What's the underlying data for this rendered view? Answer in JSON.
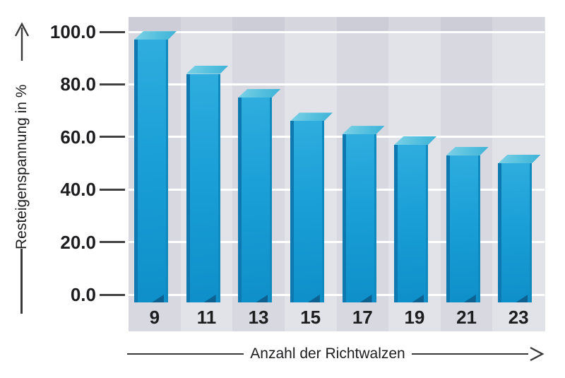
{
  "chart_data": {
    "type": "bar",
    "title": "",
    "categories": [
      "9",
      "11",
      "13",
      "15",
      "17",
      "19",
      "21",
      "23"
    ],
    "values": [
      97,
      84,
      75,
      66,
      61,
      57,
      53,
      50
    ],
    "xlabel": "Anzahl der Richtwalzen",
    "ylabel": "Resteigenspannung in %",
    "yticks_labels": [
      "100.0",
      "80.0",
      "60.0",
      "40.0",
      "20.0",
      "0.0"
    ],
    "yticks_values": [
      100,
      80,
      60,
      40,
      20,
      0
    ],
    "ylim": [
      0,
      100
    ],
    "grid": "horizontal white lines at every 20",
    "legend_position": "none",
    "background_stripes": "vertical alternating gray bands, one per category",
    "bar_style": "pseudo-3D extruded, cyan-blue"
  },
  "colors": {
    "stripe_dark": "#d7d8e0",
    "stripe_light": "#e2e2e9",
    "gridline": "#ffffff",
    "bar_front_top": "#2fadde",
    "bar_front_bottom": "#0e8fc9",
    "bar_top_face": "#55c0de",
    "bar_left_edge": "#0d79b0",
    "bar_bottom_bevel": "#0c6190",
    "axis_line": "#3a3a3a",
    "text": "#1d1d1f",
    "page_background": "#ffffff"
  }
}
